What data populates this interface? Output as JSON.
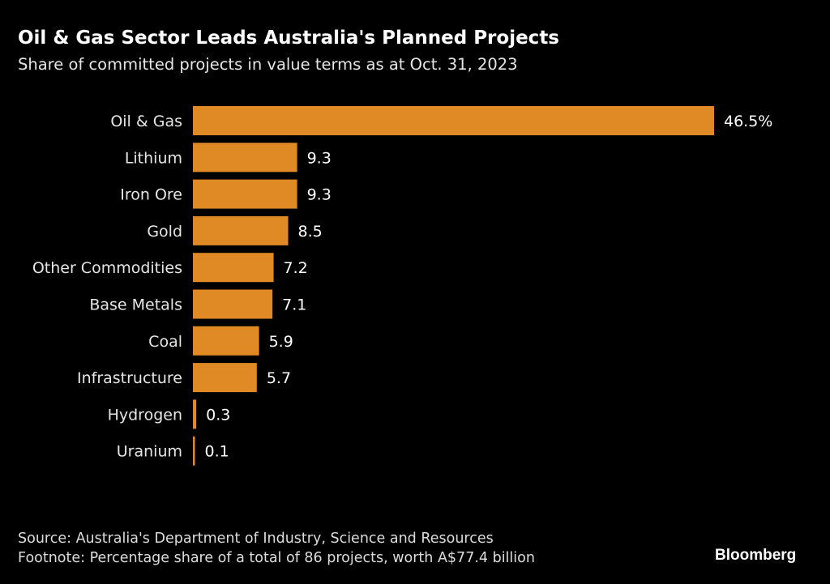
{
  "chart_data": {
    "type": "bar",
    "orientation": "horizontal",
    "title": "Oil & Gas Sector Leads Australia's Planned Projects",
    "subtitle": "Share of committed projects in value terms as at Oct. 31, 2023",
    "categories": [
      "Oil & Gas",
      "Lithium",
      "Iron Ore",
      "Gold",
      "Other Commodities",
      "Base Metals",
      "Coal",
      "Infrastructure",
      "Hydrogen",
      "Uranium"
    ],
    "values": [
      46.5,
      9.3,
      9.3,
      8.5,
      7.2,
      7.1,
      5.9,
      5.7,
      0.3,
      0.1
    ],
    "data_labels": [
      "46.5%",
      "9.3",
      "9.3",
      "8.5",
      "7.2",
      "7.1",
      "5.9",
      "5.7",
      "0.3",
      "0.1"
    ],
    "xlim": [
      0,
      46.5
    ],
    "grid": false,
    "bar_color": "#E08A26",
    "background": "#000000"
  },
  "footer": {
    "source": "Source: Australia's Department of Industry, Science and Resources",
    "footnote": "Footnote: Percentage share of a total of 86 projects, worth A$77.4 billion",
    "logo": "Bloomberg"
  }
}
